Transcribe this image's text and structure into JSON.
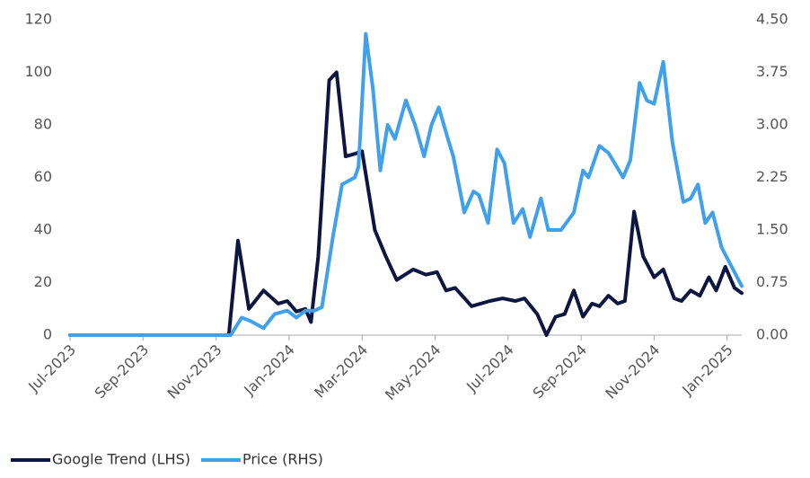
{
  "chart_data": {
    "type": "line",
    "xlim": [
      0,
      18.4
    ],
    "xticks": [
      {
        "value": 0,
        "label": "Jul-2023"
      },
      {
        "value": 2,
        "label": "Sep-2023"
      },
      {
        "value": 4,
        "label": "Nov-2023"
      },
      {
        "value": 6,
        "label": "Jan-2024"
      },
      {
        "value": 8,
        "label": "Mar-2024"
      },
      {
        "value": 10,
        "label": "May-2024"
      },
      {
        "value": 12,
        "label": "Jul-2024"
      },
      {
        "value": 14,
        "label": "Sep-2024"
      },
      {
        "value": 16,
        "label": "Nov-2024"
      },
      {
        "value": 18,
        "label": "Jan-2025"
      }
    ],
    "ylim": [
      0,
      120
    ],
    "yticks": [
      0,
      20,
      40,
      60,
      80,
      100,
      120
    ],
    "y2lim": [
      0,
      4.5
    ],
    "y2ticks": [
      {
        "value": 0,
        "label": "0.00"
      },
      {
        "value": 0.75,
        "label": "0.75"
      },
      {
        "value": 1.5,
        "label": "1.50"
      },
      {
        "value": 2.25,
        "label": "2.25"
      },
      {
        "value": 3,
        "label": "3.00"
      },
      {
        "value": 3.75,
        "label": "3.75"
      },
      {
        "value": 4.5,
        "label": "4.50"
      }
    ],
    "series": [
      {
        "name": "Google Trend (LHS)",
        "color": "#0d1640",
        "x": [
          0,
          4.35,
          4.6,
          4.9,
          5.3,
          5.7,
          5.95,
          6.2,
          6.45,
          6.6,
          6.8,
          7.1,
          7.3,
          7.55,
          7.8,
          8.0,
          8.35,
          8.65,
          8.95,
          9.4,
          9.75,
          10.05,
          10.3,
          10.55,
          11,
          11.5,
          11.85,
          12.2,
          12.45,
          12.8,
          13.05,
          13.3,
          13.55,
          13.8,
          14.05,
          14.3,
          14.5,
          14.75,
          15,
          15.2,
          15.45,
          15.7,
          16,
          16.25,
          16.55,
          16.75,
          17,
          17.25,
          17.5,
          17.7,
          17.95,
          18.2,
          18.4
        ],
        "values": [
          0,
          0,
          36,
          10,
          17,
          12,
          13,
          9,
          10,
          5,
          30,
          97,
          100,
          68,
          69,
          70,
          40,
          30,
          21,
          25,
          23,
          24,
          17,
          18,
          11,
          13,
          14,
          13,
          14,
          8,
          0,
          7,
          8,
          17,
          7,
          12,
          11,
          15,
          12,
          13,
          47,
          30,
          22,
          25,
          14,
          13,
          17,
          15,
          22,
          17,
          26,
          18,
          16
        ]
      },
      {
        "name": "Price (RHS)",
        "color": "#3fa0ee",
        "axis": "y2",
        "x": [
          0,
          4.4,
          4.7,
          4.95,
          5.3,
          5.6,
          5.95,
          6.2,
          6.45,
          6.7,
          6.9,
          7.2,
          7.45,
          7.8,
          7.9,
          8.1,
          8.3,
          8.5,
          8.7,
          8.9,
          9.2,
          9.45,
          9.7,
          9.9,
          10.1,
          10.35,
          10.5,
          10.65,
          10.8,
          11.05,
          11.2,
          11.45,
          11.7,
          11.9,
          12.15,
          12.4,
          12.6,
          12.9,
          13.1,
          13.45,
          13.8,
          14.05,
          14.2,
          14.5,
          14.75,
          15.15,
          15.35,
          15.6,
          15.8,
          16,
          16.25,
          16.5,
          16.8,
          17,
          17.2,
          17.4,
          17.6,
          17.85,
          18.1,
          18.4
        ],
        "values": [
          0,
          0,
          0.25,
          0.2,
          0.1,
          0.3,
          0.35,
          0.25,
          0.35,
          0.35,
          0.4,
          1.4,
          2.15,
          2.25,
          2.4,
          4.3,
          3.5,
          2.35,
          3.0,
          2.8,
          3.35,
          3.0,
          2.55,
          3.0,
          3.25,
          2.8,
          2.55,
          2.15,
          1.75,
          2.05,
          2.0,
          1.6,
          2.65,
          2.45,
          1.6,
          1.8,
          1.4,
          1.95,
          1.5,
          1.5,
          1.75,
          2.35,
          2.25,
          2.7,
          2.6,
          2.25,
          2.5,
          3.6,
          3.35,
          3.3,
          3.9,
          2.75,
          1.9,
          1.95,
          2.15,
          1.6,
          1.75,
          1.25,
          1.0,
          0.7
        ]
      }
    ]
  }
}
